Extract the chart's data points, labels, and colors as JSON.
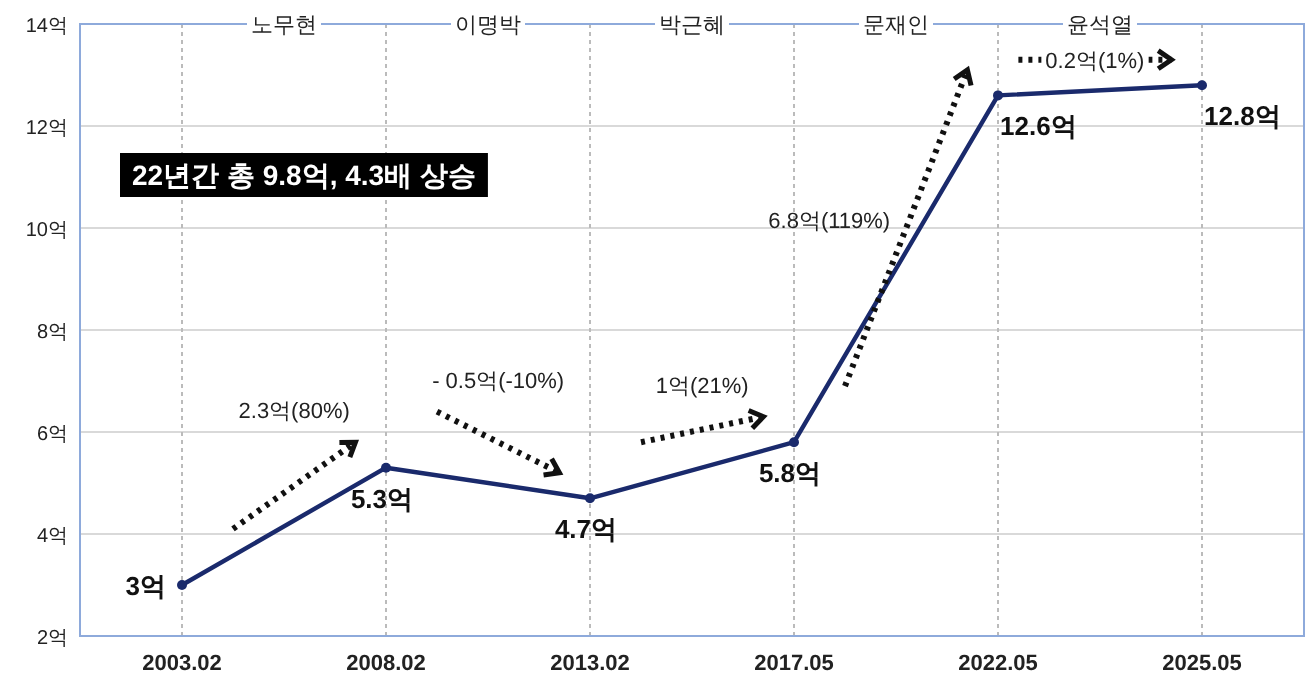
{
  "chart_data": {
    "type": "line",
    "categories": [
      "2003.02",
      "2008.02",
      "2013.02",
      "2017.05",
      "2022.05",
      "2025.05"
    ],
    "series": [
      {
        "color": "#1a2a6c",
        "values": [
          3,
          5.3,
          4.7,
          5.8,
          12.6,
          12.8
        ],
        "value_labels": [
          "3억",
          "5.3억",
          "4.7억",
          "5.8억",
          "12.6억",
          "12.8억"
        ]
      }
    ],
    "ylim": [
      2,
      14
    ],
    "yticks": [
      {
        "value": 2,
        "label": "2억"
      },
      {
        "value": 4,
        "label": "4억"
      },
      {
        "value": 6,
        "label": "6억"
      },
      {
        "value": 8,
        "label": "8억"
      },
      {
        "value": 10,
        "label": "10억"
      },
      {
        "value": 12,
        "label": "12억"
      },
      {
        "value": 14,
        "label": "14억"
      }
    ],
    "grid": true,
    "marker": "circle",
    "line_style": "solid",
    "annotations": [
      "22년간 총 9.8억, 4.3배 상승",
      "2.3억(80%)",
      "- 0.5억(-10%)",
      "1억(21%)",
      "6.8억(119%)",
      "0.2억(1%)",
      "노무현",
      "이명박",
      "박근혜",
      "문재인",
      "윤석열"
    ]
  }
}
